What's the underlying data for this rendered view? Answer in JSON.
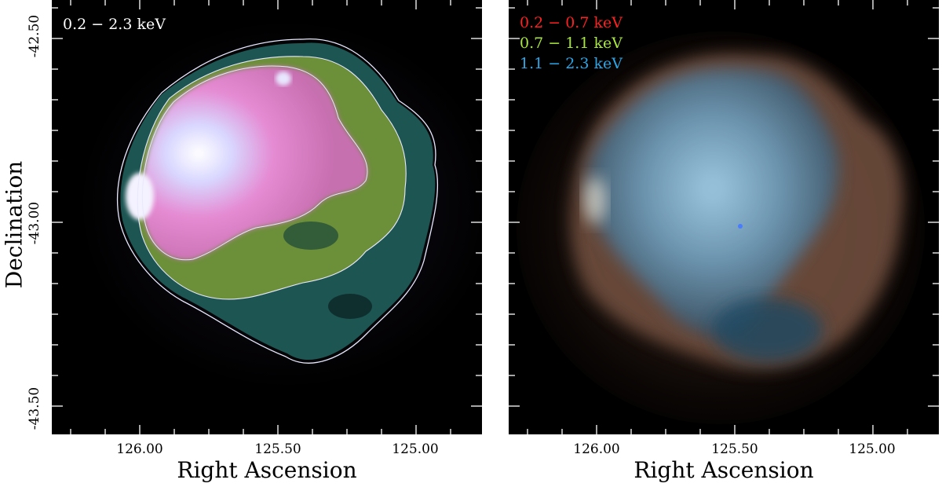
{
  "left_panel": {
    "band_label": "0.2 − 2.3 keV"
  },
  "right_panel": {
    "legend": [
      {
        "label": "0.2 − 0.7 keV",
        "color": "#ff2020"
      },
      {
        "label": "0.7 − 1.1 keV",
        "color": "#a8e83a"
      },
      {
        "label": "1.1 − 2.3 keV",
        "color": "#2aa6e8"
      }
    ]
  },
  "axes": {
    "xlabel": "Right Ascension",
    "ylabel": "Declination",
    "x_ticks": [
      "126.00",
      "125.50",
      "125.00"
    ],
    "y_ticks": [
      "-42.50",
      "-43.00",
      "-43.50"
    ]
  },
  "colors": {
    "background": "#000000",
    "contour": "#e8e8ff",
    "pink": "#e07ac8",
    "green": "#6f9a3a",
    "teal": "#1f5b58"
  }
}
